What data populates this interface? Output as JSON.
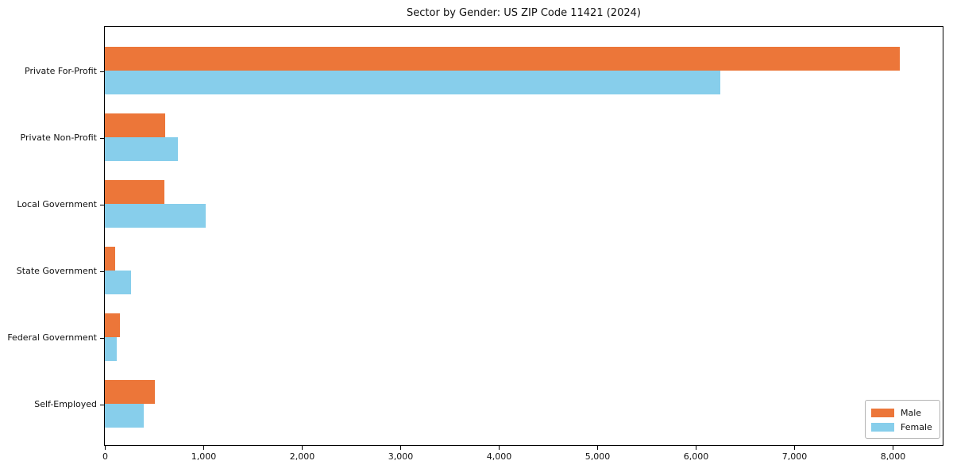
{
  "figure": {
    "title": "Sector by Gender: US ZIP Code 11421 (2024)"
  },
  "chart_data": {
    "type": "bar",
    "orientation": "horizontal",
    "title": "Sector by Gender: US ZIP Code 11421 (2024)",
    "categories": [
      "Private For-Profit",
      "Private Non-Profit",
      "Local Government",
      "State Government",
      "Federal Government",
      "Self-Employed"
    ],
    "series": [
      {
        "name": "Male",
        "color": "#ec7639",
        "values": [
          8075,
          610,
          605,
          105,
          150,
          505
        ]
      },
      {
        "name": "Female",
        "color": "#87ceeb",
        "values": [
          6250,
          740,
          1020,
          265,
          120,
          395
        ]
      }
    ],
    "xlabel": "",
    "ylabel": "",
    "xlim": [
      0,
      8500
    ],
    "xticks": [
      0,
      1000,
      2000,
      3000,
      4000,
      5000,
      6000,
      7000,
      8000
    ],
    "xtick_labels": [
      "0",
      "1,000",
      "2,000",
      "3,000",
      "4,000",
      "5,000",
      "6,000",
      "7,000",
      "8,000"
    ],
    "grid": false,
    "legend": {
      "position": "lower-right",
      "items": [
        "Male",
        "Female"
      ]
    }
  }
}
